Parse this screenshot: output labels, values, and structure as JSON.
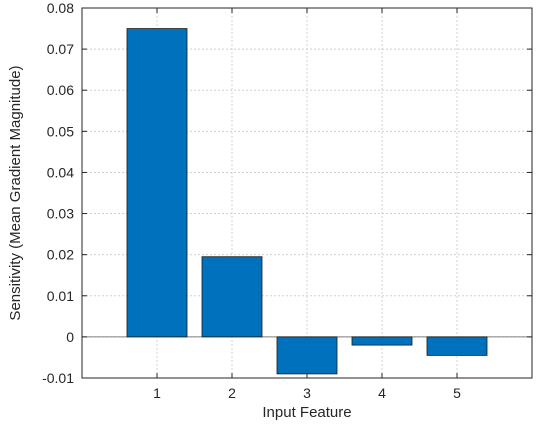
{
  "chart_data": {
    "type": "bar",
    "categories": [
      "1",
      "2",
      "3",
      "4",
      "5"
    ],
    "values": [
      0.075,
      0.0195,
      -0.009,
      -0.002,
      -0.0045
    ],
    "title": "",
    "xlabel": "Input Feature",
    "ylabel": "Sensitivity (Mean Gradient Magnitude)",
    "xlim": [
      0,
      6
    ],
    "ylim": [
      -0.01,
      0.08
    ],
    "yticks": [
      "-0.01",
      "0",
      "0.01",
      "0.02",
      "0.03",
      "0.04",
      "0.05",
      "0.06",
      "0.07",
      "0.08"
    ],
    "grid": true,
    "bar_color": "#0072BD",
    "bar_edge_color": "#1a1a1a",
    "grid_color": "#d0d0d0",
    "axis_color": "#262626"
  }
}
